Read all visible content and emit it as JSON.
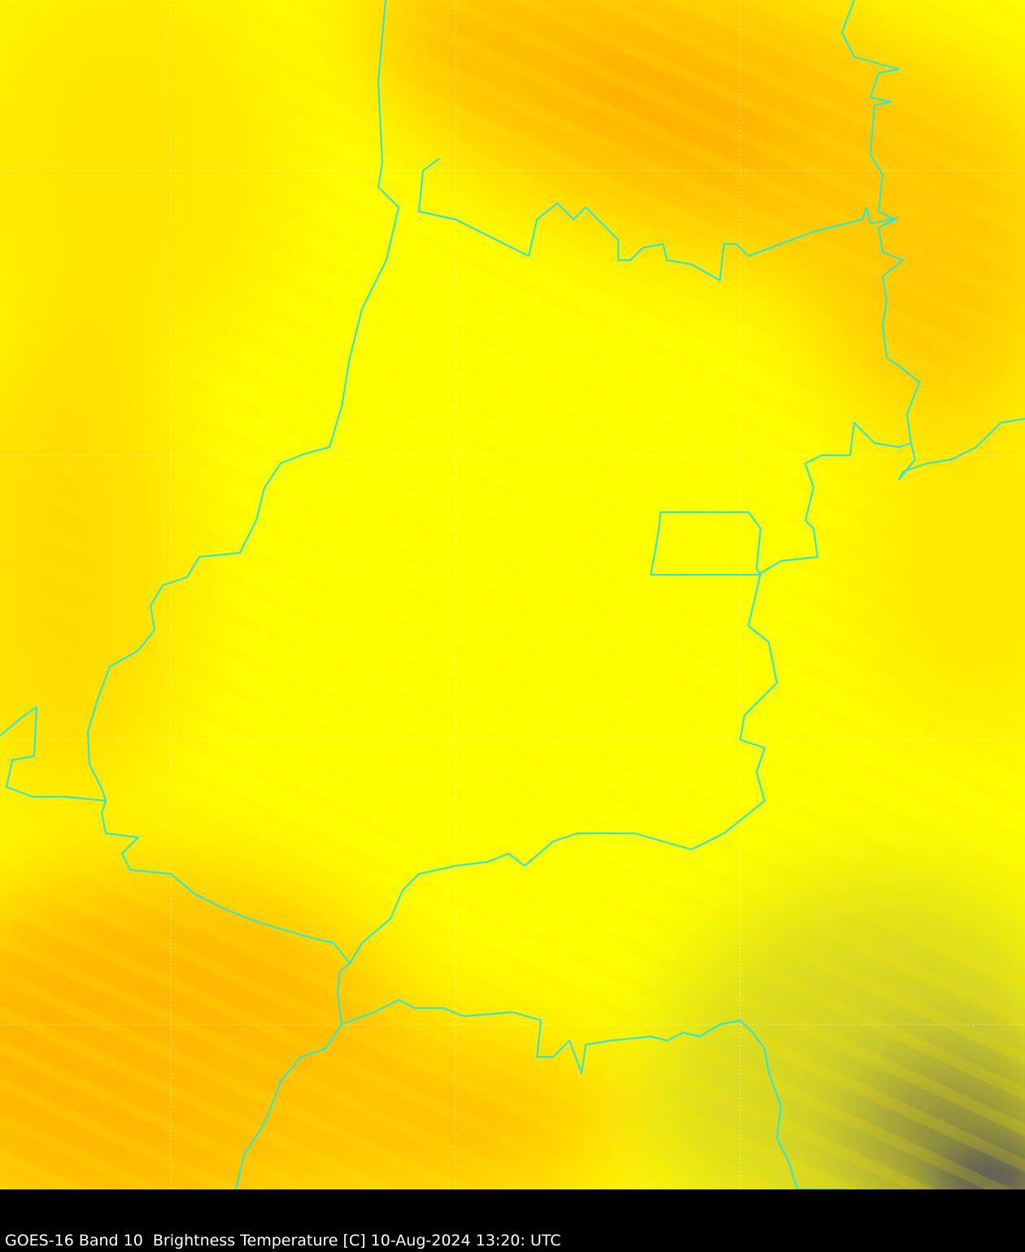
{
  "caption": "GOES-16 Band 10  Brightness Temperature [C] 10-Aug-2024 13:20: UTC",
  "colors": {
    "warm": "#ffff00",
    "mid": "#ffd200",
    "cold": "#ffb800",
    "cloud": "#5a5a5a",
    "border": "#33e6d0",
    "grid": "#ffffff"
  }
}
